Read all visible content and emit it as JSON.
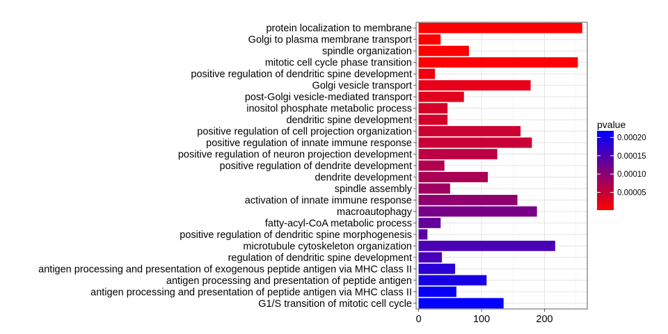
{
  "chart_data": {
    "type": "bar",
    "orientation": "horizontal",
    "categories": [
      "protein localization to membrane",
      "Golgi to plasma membrane transport",
      "spindle organization",
      "mitotic cell cycle phase transition",
      "positive regulation of dendritic spine development",
      "Golgi vesicle transport",
      "post-Golgi vesicle-mediated transport",
      "inositol phosphate metabolic process",
      "dendritic spine development",
      "positive regulation of cell projection organization",
      "positive regulation of innate immune response",
      "positive regulation of neuron projection development",
      "positive regulation of dendrite development",
      "dendrite development",
      "spindle assembly",
      "activation of innate immune response",
      "macroautophagy",
      "fatty-acyl-CoA metabolic process",
      "positive regulation of dendritic spine morphogenesis",
      "microtubule cytoskeleton organization",
      "regulation of dendritic spine development",
      "antigen processing and presentation of exogenous peptide antigen via MHC class II",
      "antigen processing and presentation of peptide antigen",
      "antigen processing and presentation of peptide antigen via MHC class II",
      "G1/S transition of mitotic cell cycle"
    ],
    "values": [
      260,
      35,
      80,
      253,
      26,
      178,
      72,
      46,
      46,
      162,
      180,
      125,
      41,
      110,
      50,
      157,
      188,
      35,
      14,
      217,
      37,
      58,
      108,
      60,
      135
    ],
    "pvalue": [
      1.5e-06,
      2.5e-06,
      4e-06,
      4.5e-06,
      1.4e-05,
      2.2e-05,
      2.7e-05,
      3.6e-05,
      3.8e-05,
      4.4e-05,
      4.8e-05,
      5.8e-05,
      6.8e-05,
      7.4e-05,
      8.2e-05,
      9.6e-05,
      0.000116,
      0.000132,
      0.000142,
      0.000155,
      0.000158,
      0.000182,
      0.000196,
      0.000212,
      0.000218
    ],
    "xlim": [
      -4,
      268
    ],
    "x_ticks": [
      0,
      100,
      200
    ],
    "x_tick_labels": [
      "0",
      "100",
      "200"
    ],
    "grid": true,
    "legend": {
      "title": "pvalue",
      "position": "right",
      "range": [
        1.5e-06,
        0.000218
      ],
      "ticks": [
        5e-05,
        0.0001,
        0.00015,
        0.0002
      ],
      "tick_labels": [
        "0.00005",
        "0.00010",
        "0.00015",
        "0.00020"
      ],
      "low_color": "#FF0000",
      "high_color": "#0000FF"
    }
  }
}
